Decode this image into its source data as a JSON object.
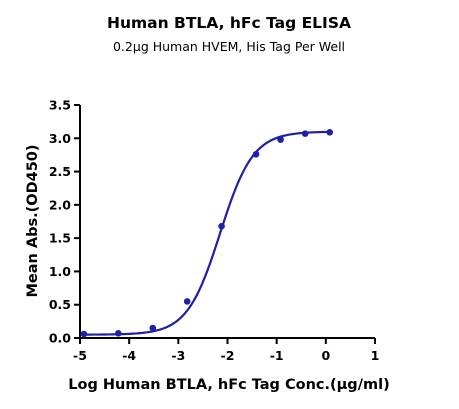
{
  "chart_data": {
    "type": "scatter",
    "title": "Human BTLA, hFc Tag ELISA",
    "subtitle": "0.2μg Human HVEM, His Tag Per Well",
    "xlabel": "Log Human BTLA, hFc Tag Conc.(μg/ml)",
    "ylabel": "Mean Abs.(OD450)",
    "xlim": [
      -5,
      1
    ],
    "ylim": [
      0,
      3.5
    ],
    "x_ticks": [
      -5,
      -4,
      -3,
      -2,
      -1,
      0,
      1
    ],
    "y_ticks": [
      0.0,
      0.5,
      1.0,
      1.5,
      2.0,
      2.5,
      3.0,
      3.5
    ],
    "x_tick_labels": [
      "-5",
      "-4",
      "-3",
      "-2",
      "-1",
      "0",
      "1"
    ],
    "y_tick_labels": [
      "0.0",
      "0.5",
      "1.0",
      "1.5",
      "2.0",
      "2.5",
      "3.0",
      "3.5"
    ],
    "grid": false,
    "legend": "none",
    "color": "#1f1fa8",
    "series": [
      {
        "x": [
          -4.92,
          -4.22,
          -3.52,
          -2.82,
          -2.12,
          -1.42,
          -0.92,
          -0.42,
          0.08
        ],
        "y": [
          0.06,
          0.07,
          0.15,
          0.55,
          1.68,
          2.76,
          2.98,
          3.07,
          3.09
        ]
      }
    ],
    "fit_curve": {
      "model": "4PL",
      "bottom": 0.05,
      "top": 3.1,
      "log_ec50": -2.15,
      "hill_slope": 1.3
    }
  }
}
